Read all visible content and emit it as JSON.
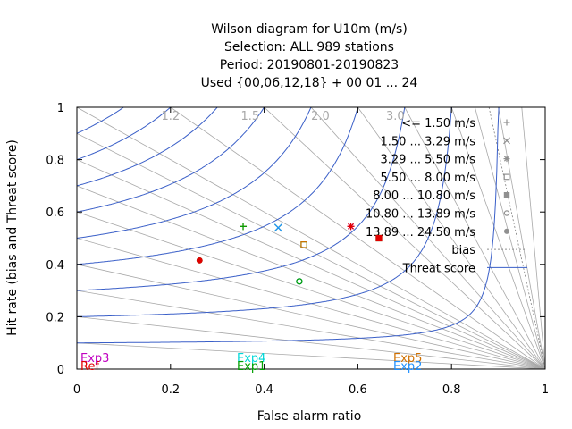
{
  "title_lines": [
    "Wilson diagram  for U10m (m/s)",
    "Selection: ALL    989 stations",
    "Period: 20190801-20190823",
    "Used {00,06,12,18} + 00 01 ... 24"
  ],
  "xlabel": "False alarm ratio",
  "ylabel": "Hit rate (bias and Threat score)",
  "colors": {
    "axis": "#000000",
    "threat_line": "#3a5fc8",
    "bias_line": "#a0a0a0",
    "legend_marker": "#909090"
  },
  "chart_data": {
    "type": "scatter",
    "xlim": [
      0,
      1
    ],
    "ylim": [
      0,
      1
    ],
    "xticks": [
      "0",
      "0.2",
      "0.4",
      "0.6",
      "0.8",
      "1"
    ],
    "yticks": [
      "0",
      "0.2",
      "0.4",
      "0.6",
      "0.8",
      "1"
    ],
    "bias_labels": [
      "1.2",
      "1.5",
      "2.0",
      "3.0"
    ],
    "threat_score_levels": [
      0.1,
      0.2,
      0.3,
      0.4,
      0.5,
      0.6,
      0.7,
      0.8,
      0.9
    ],
    "legend": [
      {
        "label": "<= 1.50 m/s",
        "marker": "plus"
      },
      {
        "label": "1.50 ... 3.29 m/s",
        "marker": "cross"
      },
      {
        "label": "3.29 ... 5.50 m/s",
        "marker": "star"
      },
      {
        "label": "5.50 ... 8.00 m/s",
        "marker": "open-square"
      },
      {
        "label": "8.00 ... 10.80 m/s",
        "marker": "filled-square"
      },
      {
        "label": "10.80 ... 13.89 m/s",
        "marker": "open-circle"
      },
      {
        "label": "13.89 ... 24.50 m/s",
        "marker": "filled-circle"
      },
      {
        "label": "bias",
        "marker": "dotted-line"
      },
      {
        "label": "Threat score",
        "marker": "solid-line"
      }
    ],
    "experiments": [
      {
        "name": "Exp3",
        "color": "#c000c0",
        "anchor": "left-upper"
      },
      {
        "name": "Ref",
        "color": "#e00000",
        "anchor": "left-lower"
      },
      {
        "name": "Exp4",
        "color": "#00d8d8",
        "anchor": "mid-upper"
      },
      {
        "name": "Exp1",
        "color": "#00a000",
        "anchor": "mid-lower"
      },
      {
        "name": "Exp5",
        "color": "#d07000",
        "anchor": "right-upper"
      },
      {
        "name": "Exp2",
        "color": "#1e90ff",
        "anchor": "right-lower"
      }
    ],
    "points": [
      {
        "x": 0.355,
        "y": 0.545,
        "marker": "plus",
        "color": "#8a6000"
      },
      {
        "x": 0.355,
        "y": 0.545,
        "marker": "plus",
        "color": "#00a000"
      },
      {
        "x": 0.43,
        "y": 0.54,
        "marker": "cross",
        "color": "#00a000"
      },
      {
        "x": 0.43,
        "y": 0.54,
        "marker": "cross",
        "color": "#1e90ff"
      },
      {
        "x": 0.585,
        "y": 0.545,
        "marker": "star",
        "color": "#c000c0"
      },
      {
        "x": 0.585,
        "y": 0.545,
        "marker": "star",
        "color": "#e00000"
      },
      {
        "x": 0.485,
        "y": 0.475,
        "marker": "open-square",
        "color": "#00a000"
      },
      {
        "x": 0.485,
        "y": 0.475,
        "marker": "open-square",
        "color": "#d07000"
      },
      {
        "x": 0.645,
        "y": 0.5,
        "marker": "filled-square",
        "color": "#00a000"
      },
      {
        "x": 0.645,
        "y": 0.5,
        "marker": "filled-square",
        "color": "#e00000"
      },
      {
        "x": 0.475,
        "y": 0.335,
        "marker": "open-circle",
        "color": "#1e90ff"
      },
      {
        "x": 0.475,
        "y": 0.335,
        "marker": "open-circle",
        "color": "#00a000"
      },
      {
        "x": 0.262,
        "y": 0.415,
        "marker": "filled-circle",
        "color": "#00a000"
      },
      {
        "x": 0.262,
        "y": 0.415,
        "marker": "filled-circle",
        "color": "#e00000"
      }
    ]
  }
}
